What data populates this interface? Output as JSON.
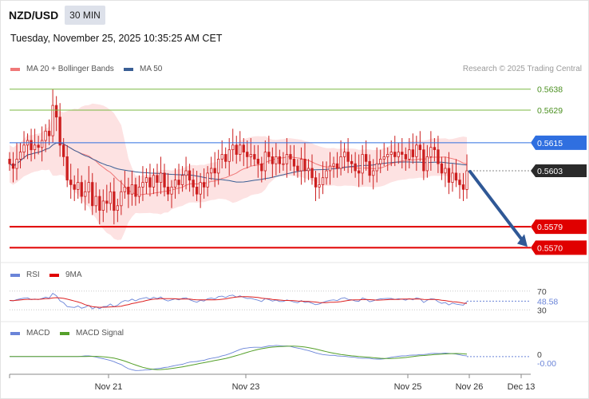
{
  "header": {
    "symbol": "NZD/USD",
    "timeframe": "30 MIN",
    "datetime": "Tuesday, November 25, 2025 10:35:25 AM CET"
  },
  "legend": {
    "ma20_label": "MA 20 + Bollinger Bands",
    "ma50_label": "MA 50",
    "copyright": "Research © 2025 Trading Central"
  },
  "rsi_legend": {
    "rsi": "RSI",
    "ma": "9MA"
  },
  "macd_legend": {
    "macd": "MACD",
    "signal": "MACD Signal"
  },
  "colors": {
    "ma20": "#f07878",
    "ma50": "#3a5f95",
    "bollinger_fill": "#fde2e2",
    "candle": "#cc1f1f",
    "green_level": "#7bb842",
    "blue_level": "#2f6fe0",
    "red_level": "#e00000",
    "current_price_bg": "#2a2a2a",
    "arrow": "#2f5896",
    "rsi": "#6a84d8",
    "macd": "#6a84d8",
    "macd_signal": "#55a02a"
  },
  "chart_data": [
    {
      "type": "candlestick",
      "title": "NZD/USD",
      "x_ticks": [
        "Nov 21",
        "Nov 23",
        "Nov 25",
        "Nov 26",
        "Dec 13"
      ],
      "ylim": [
        0.5565,
        0.5642
      ],
      "current_price": 0.5603,
      "levels": [
        {
          "value": 0.5638,
          "label": "0.5638",
          "kind": "resistance",
          "color": "green"
        },
        {
          "value": 0.5629,
          "label": "0.5629",
          "kind": "resistance",
          "color": "green"
        },
        {
          "value": 0.5615,
          "label": "0.5615",
          "kind": "pivot",
          "color": "blue"
        },
        {
          "value": 0.5579,
          "label": "0.5579",
          "kind": "support",
          "color": "red"
        },
        {
          "value": 0.557,
          "label": "0.5570",
          "kind": "support",
          "color": "red"
        }
      ],
      "current_label": "0.5603",
      "projection": {
        "from": 0.5603,
        "to": 0.557,
        "direction": "down"
      },
      "closes": [
        0.5606,
        0.5604,
        0.5608,
        0.5611,
        0.5614,
        0.5616,
        0.5612,
        0.5614,
        0.5613,
        0.5616,
        0.562,
        0.5618,
        0.5631,
        0.5626,
        0.5614,
        0.5609,
        0.5599,
        0.5597,
        0.5595,
        0.5598,
        0.5592,
        0.5594,
        0.5598,
        0.5588,
        0.5592,
        0.5586,
        0.559,
        0.5589,
        0.5594,
        0.5586,
        0.5588,
        0.5594,
        0.5596,
        0.5593,
        0.5597,
        0.5592,
        0.5596,
        0.5598,
        0.56,
        0.5596,
        0.5601,
        0.5598,
        0.5602,
        0.5596,
        0.5593,
        0.5596,
        0.5599,
        0.5597,
        0.5601,
        0.5603,
        0.5599,
        0.5596,
        0.5593,
        0.5598,
        0.5596,
        0.5602,
        0.5604,
        0.5602,
        0.5608,
        0.561,
        0.5607,
        0.5612,
        0.5614,
        0.561,
        0.5614,
        0.5611,
        0.5609,
        0.561,
        0.5608,
        0.5606,
        0.5603,
        0.5611,
        0.5609,
        0.5606,
        0.5609,
        0.5606,
        0.5606,
        0.561,
        0.5608,
        0.5605,
        0.5603,
        0.5608,
        0.5603,
        0.5604,
        0.56,
        0.5596,
        0.5597,
        0.56,
        0.5603,
        0.5605,
        0.5606,
        0.5604,
        0.5609,
        0.5611,
        0.5607,
        0.5606,
        0.5603,
        0.5602,
        0.561,
        0.5607,
        0.5601,
        0.5603,
        0.5606,
        0.5608,
        0.5609,
        0.561,
        0.5611,
        0.5609,
        0.5611,
        0.561,
        0.5608,
        0.5612,
        0.5609,
        0.5614,
        0.5612,
        0.5603,
        0.5609,
        0.5613,
        0.5612,
        0.5606,
        0.5602,
        0.5604,
        0.5598,
        0.5602,
        0.5599,
        0.5597,
        0.5595,
        0.5603
      ]
    },
    {
      "type": "line",
      "title": "RSI",
      "levels": [
        70,
        30
      ],
      "level_labels": [
        "70",
        "30"
      ],
      "current_value": 48.58,
      "current_label": "48.58",
      "series": [
        {
          "name": "RSI"
        },
        {
          "name": "9MA"
        }
      ]
    },
    {
      "type": "line",
      "title": "MACD",
      "zero_label": "0",
      "current_label": "-0.00",
      "current_value": -0.0,
      "series": [
        {
          "name": "MACD"
        },
        {
          "name": "MACD Signal"
        }
      ]
    }
  ]
}
